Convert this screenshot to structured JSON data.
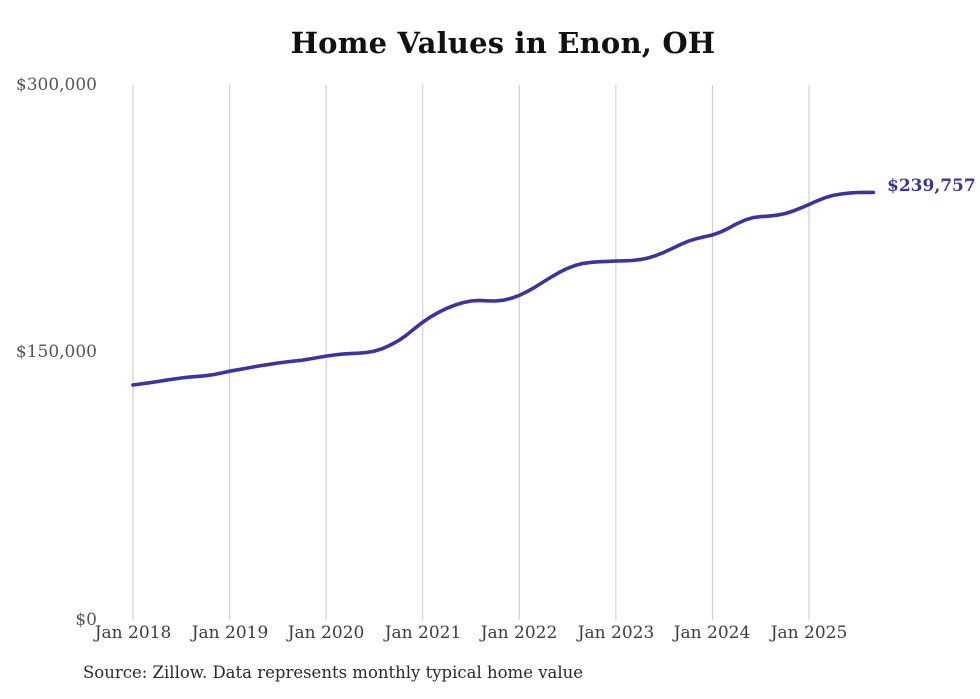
{
  "title": "Home Values in Enon, OH",
  "source_note": "Source: Zillow. Data represents monthly typical home value",
  "colors": {
    "line": "#3a34a3",
    "grid": "#c9c9c9",
    "axis_text": "#555555",
    "xaxis_text": "#3d3d3d",
    "title_text": "#111111",
    "source_text": "#2a2a2a",
    "background": "#ffffff"
  },
  "chart_data": {
    "type": "line",
    "title": "Home Values in Enon, OH",
    "xlabel": "",
    "ylabel": "",
    "x_start": "2018-01",
    "x_end": "2025-09",
    "frequency": "monthly",
    "x_tick_labels": [
      "Jan 2018",
      "Jan 2019",
      "Jan 2020",
      "Jan 2021",
      "Jan 2022",
      "Jan 2023",
      "Jan 2024",
      "Jan 2025"
    ],
    "y_tick_labels": [
      "$0",
      "$150,000",
      "$300,000"
    ],
    "ylim": [
      0,
      300000
    ],
    "grid": "vertical-only",
    "legend": "none",
    "last_value_label": "$239,757",
    "last_value": 239757,
    "series": [
      {
        "name": "Typical home value",
        "values": [
          131800,
          132400,
          133000,
          133700,
          134400,
          135100,
          135700,
          136200,
          136600,
          137000,
          137600,
          138500,
          139500,
          140300,
          141100,
          141900,
          142700,
          143400,
          144100,
          144700,
          145200,
          145700,
          146400,
          147200,
          148000,
          148600,
          149100,
          149400,
          149600,
          150000,
          150800,
          152200,
          154200,
          156700,
          159800,
          163500,
          167000,
          170000,
          172600,
          174800,
          176600,
          178000,
          178900,
          179200,
          179000,
          178900,
          179300,
          180400,
          182000,
          184200,
          186800,
          189600,
          192400,
          195000,
          197200,
          198900,
          200000,
          200600,
          200900,
          201100,
          201300,
          201400,
          201600,
          202100,
          203000,
          204400,
          206200,
          208300,
          210500,
          212400,
          213800,
          214900,
          215900,
          217500,
          219700,
          222100,
          224200,
          225600,
          226200,
          226500,
          227000,
          227900,
          229300,
          231100,
          233000,
          235000,
          236800,
          238100,
          238900,
          239400,
          239700,
          239800,
          239757
        ]
      }
    ]
  }
}
